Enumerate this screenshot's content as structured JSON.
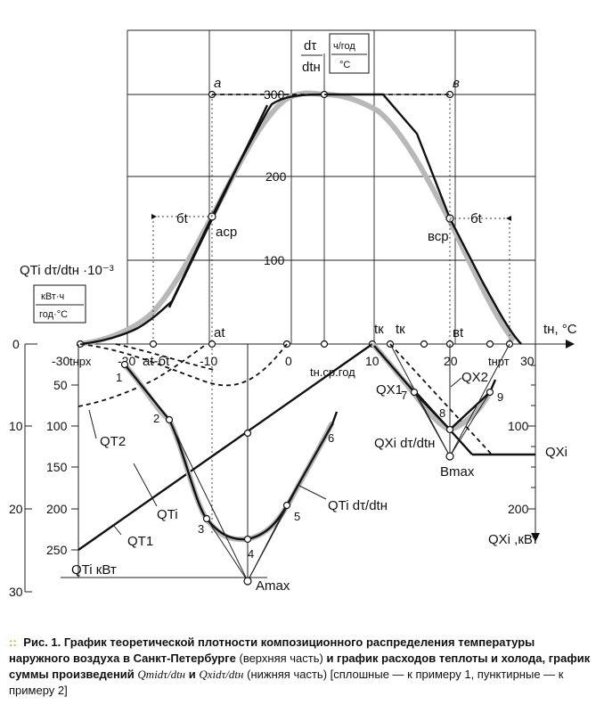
{
  "caption": {
    "bullet": "::",
    "label": "Рис. 1.",
    "bold_text": "График теоретической плотности композиционного распределения температуры наружного воздуха в Санкт-Петербурге",
    "note1": "(верхняя часть)",
    "mid_text": "и график расходов теплоты и холода, график суммы произведений",
    "expr1": "Qтidτ/dtн",
    "and": "и",
    "expr2": "Qхidτ/dtн",
    "note2": "(нижняя часть) [сплошные — к примеру 1, пунктирные — к примеру 2]"
  },
  "labels": {
    "density_axis": "dτ",
    "density_axis_den": "dtн",
    "density_unit_num": "ч/год",
    "density_unit_den": "°C",
    "temp_axis": "tн, °C",
    "left_axis_expr": "QTi dτ/dtн ·10⁻³",
    "left_unit_num": "кВт·ч",
    "left_unit_den": "год·°C",
    "heat_axis": "QTi кВт",
    "cold_axis": "QXi ,кВт",
    "a": "a",
    "b": "в",
    "a_sr": "aср",
    "b_sr": "вср",
    "sigma_left": "бt",
    "sigma_right": "бt",
    "a_t": "at",
    "a_t_minus_sigma": "at-бt",
    "b_t": "вt",
    "t_nrkh": "tнрх",
    "t_nrt": "tнрт",
    "t_mean": "tн.ср.год",
    "t_k1": "tк",
    "t_k2": "tк",
    "Q_T1": "QT1",
    "Q_T2": "QT2",
    "Q_Ti": "QTi",
    "Q_Ti_prod": "QTi dτ/dtн",
    "Q_X1": "QX1",
    "Q_X2": "QX2",
    "Q_Xi": "QXi",
    "Q_Xi_prod": "QXi dτ/dtн",
    "A_max": "Amax",
    "B_max": "Bmax",
    "points": [
      "1",
      "2",
      "3",
      "4",
      "5",
      "6",
      "7",
      "8",
      "9"
    ]
  },
  "ticks": {
    "density": [
      "100",
      "200",
      "300"
    ],
    "temp": [
      "-30",
      "-20",
      "-10",
      "0",
      "10",
      "20",
      "30"
    ],
    "left_product": [
      "0",
      "10",
      "20",
      "30"
    ],
    "heat_load": [
      "50",
      "100",
      "150",
      "200",
      "250"
    ],
    "cold_load": [
      "100",
      "200"
    ]
  },
  "chart_data": {
    "type": "line",
    "x_axis": {
      "label": "tн, °C",
      "range": [
        -32,
        32
      ]
    },
    "top_panel": {
      "ylabel": "dτ/dtн [ч/год/°C]",
      "ylim": [
        0,
        300
      ],
      "series": [
        {
          "name": "",
          "x": [
            -29.4,
            -26,
            -22,
            -20,
            -18,
            -15,
            -12,
            -10,
            -5,
            0,
            4,
            9,
            14,
            18,
            20,
            22,
            25,
            28,
            29.5
          ],
          "y": [
            0,
            7,
            22,
            42,
            80,
            122,
            158,
            185,
            246,
            285,
            300,
            287,
            232,
            175,
            150,
            118,
            62,
            18,
            0
          ]
        }
      ],
      "annotations": {
        "peak": 300,
        "a_sr_x": -13.5,
        "b_sr_x": 20.5,
        "half_level": 150
      }
    },
    "bottom_panel": {
      "heat_ylim": [
        0,
        250
      ],
      "product_ylim": [
        0,
        30
      ],
      "series": [
        {
          "name": "QT1",
          "x": [
            -30,
            10
          ],
          "y": [
            250,
            0
          ]
        },
        {
          "name": "QTi dτ/dtн",
          "x": [
            -24,
            -18,
            -13,
            -9,
            -6,
            -2,
            2,
            5
          ],
          "y": [
            2.5,
            9.4,
            21.5,
            23.9,
            22.0,
            19.5,
            11.0,
            3.0
          ]
        },
        {
          "name": "QXi dτ/dtн",
          "x": [
            11,
            14,
            20,
            24
          ],
          "y": [
            0,
            6,
            10.6,
            6
          ]
        }
      ],
      "points": [
        {
          "label": "1",
          "x": -24.3,
          "y": 2.5
        },
        {
          "label": "2",
          "x": -18.6,
          "y": 9.4
        },
        {
          "label": "3",
          "x": -13.9,
          "y": 21.5
        },
        {
          "label": "4",
          "x": -8.9,
          "y": 23.9
        },
        {
          "label": "5",
          "x": -1.3,
          "y": 19.7
        },
        {
          "label": "6",
          "x": 2.2,
          "y": 11.2
        },
        {
          "label": "7",
          "x": 14.1,
          "y": 5.6
        },
        {
          "label": "8",
          "x": 20.0,
          "y": 10.3
        },
        {
          "label": "9",
          "x": 23.9,
          "y": 6.2
        }
      ]
    }
  }
}
